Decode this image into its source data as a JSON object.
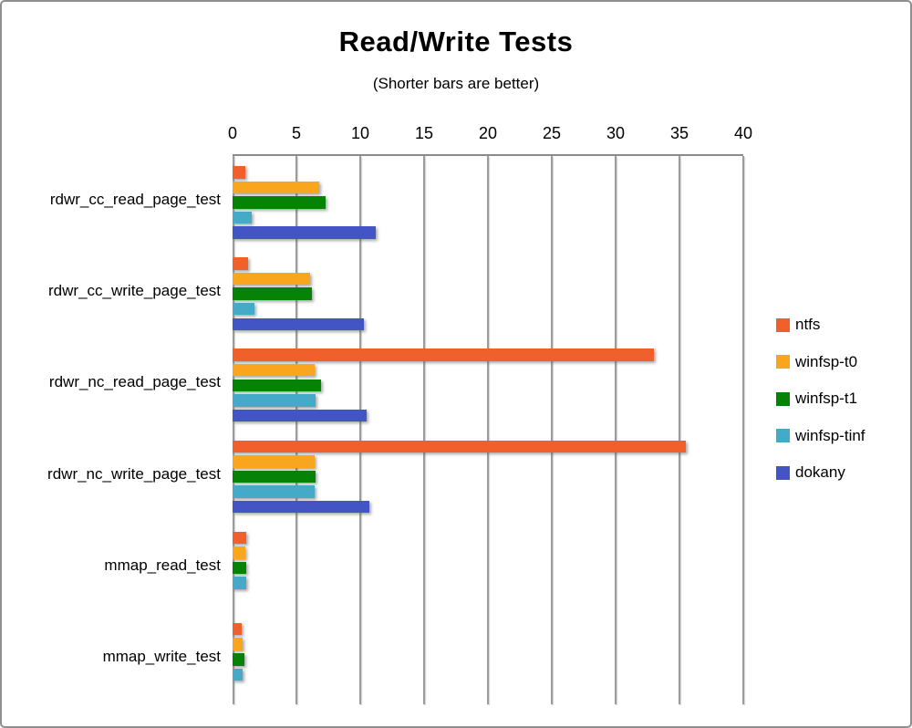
{
  "window": {
    "background": "#ffffff",
    "frame_border_color": "#8f8f8f"
  },
  "chart_data": {
    "type": "bar",
    "orientation": "horizontal",
    "title": "Read/Write Tests",
    "subtitle": "(Shorter bars are better)",
    "xlabel": "",
    "ylabel": "",
    "xlim": [
      0,
      40
    ],
    "xticks": [
      0,
      5,
      10,
      15,
      20,
      25,
      30,
      35,
      40
    ],
    "grid": true,
    "legend_position": "right",
    "categories": [
      "rdwr_cc_read_page_test",
      "rdwr_cc_write_page_test",
      "rdwr_nc_read_page_test",
      "rdwr_nc_write_page_test",
      "mmap_read_test",
      "mmap_write_test"
    ],
    "series": [
      {
        "name": "ntfs",
        "color": "#F0602C",
        "values": [
          1.0,
          1.2,
          33.0,
          35.5,
          1.1,
          0.7
        ]
      },
      {
        "name": "winfsp-t0",
        "color": "#FAA51E",
        "values": [
          6.8,
          6.1,
          6.4,
          6.4,
          1.0,
          0.8
        ]
      },
      {
        "name": "winfsp-t1",
        "color": "#068206",
        "values": [
          7.3,
          6.2,
          6.9,
          6.5,
          1.1,
          0.9
        ]
      },
      {
        "name": "winfsp-tinf",
        "color": "#45AAC8",
        "values": [
          1.5,
          1.7,
          6.5,
          6.4,
          1.1,
          0.8
        ]
      },
      {
        "name": "dokany",
        "color": "#4355C4",
        "values": [
          11.2,
          10.3,
          10.5,
          10.7,
          0,
          0
        ]
      }
    ]
  },
  "colors": {
    "axis": "#8a8a8a",
    "gridline": "#9b9b9b",
    "text": "#000000"
  }
}
